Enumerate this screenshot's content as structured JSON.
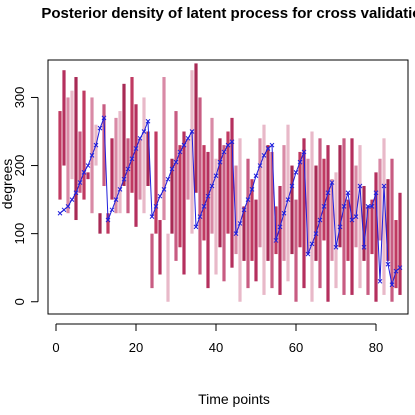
{
  "chart_data": {
    "type": "line",
    "title": "Posterior density of latent process for cross validation",
    "xlabel": "Time points",
    "ylabel": "degrees",
    "xlim": [
      -2,
      88
    ],
    "ylim": [
      -18,
      355
    ],
    "x_ticks": [
      0,
      20,
      40,
      60,
      80
    ],
    "y_ticks": [
      0,
      100,
      200,
      300
    ],
    "grid": false,
    "legend": "none",
    "colors": {
      "line": "#1f1fdc",
      "marker": "#1f1fdc",
      "density_palette": [
        "#c03a62",
        "#b5305e",
        "#d98aa6",
        "#e8b9c9",
        "#a82a55",
        "#c85c82"
      ]
    },
    "series": [
      {
        "type": "line-points",
        "x": [
          1,
          2,
          3,
          4,
          5,
          6,
          7,
          8,
          9,
          10,
          11,
          12,
          13,
          14,
          15,
          16,
          17,
          18,
          19,
          20,
          21,
          22,
          23,
          24,
          25,
          26,
          27,
          28,
          29,
          30,
          31,
          32,
          33,
          34,
          35,
          36,
          37,
          38,
          39,
          40,
          41,
          42,
          43,
          44,
          45,
          46,
          47,
          48,
          49,
          50,
          51,
          52,
          53,
          54,
          55,
          56,
          57,
          58,
          59,
          60,
          61,
          62,
          63,
          64,
          65,
          66,
          67,
          68,
          69,
          70,
          71,
          72,
          73,
          74,
          75,
          76,
          77,
          78,
          79,
          80,
          81,
          82,
          83,
          84,
          85,
          86
        ],
        "y": [
          130,
          135,
          140,
          150,
          160,
          175,
          190,
          200,
          215,
          230,
          255,
          270,
          120,
          135,
          150,
          165,
          180,
          195,
          210,
          225,
          240,
          250,
          265,
          125,
          140,
          155,
          165,
          180,
          195,
          205,
          220,
          230,
          240,
          250,
          110,
          125,
          140,
          155,
          170,
          185,
          205,
          220,
          230,
          235,
          100,
          115,
          135,
          150,
          165,
          185,
          200,
          215,
          225,
          230,
          90,
          110,
          130,
          150,
          170,
          190,
          205,
          220,
          70,
          85,
          100,
          120,
          140,
          160,
          175,
          80,
          110,
          140,
          160,
          120,
          125,
          170,
          80,
          140,
          140,
          160,
          30,
          170,
          55,
          25,
          45,
          50
        ]
      },
      {
        "type": "density-bars",
        "x": [
          1,
          2,
          3,
          4,
          5,
          6,
          7,
          8,
          9,
          10,
          11,
          12,
          13,
          14,
          15,
          16,
          17,
          18,
          19,
          20,
          21,
          22,
          23,
          24,
          25,
          26,
          27,
          28,
          29,
          30,
          31,
          32,
          33,
          34,
          35,
          36,
          37,
          38,
          39,
          40,
          41,
          42,
          43,
          44,
          45,
          46,
          47,
          48,
          49,
          50,
          51,
          52,
          53,
          54,
          55,
          56,
          57,
          58,
          59,
          60,
          61,
          62,
          63,
          64,
          65,
          66,
          67,
          68,
          69,
          70,
          71,
          72,
          73,
          74,
          75,
          76,
          77,
          78,
          79,
          80,
          81,
          82,
          83,
          84,
          85,
          86
        ],
        "low": [
          150,
          200,
          130,
          180,
          120,
          160,
          150,
          180,
          130,
          200,
          100,
          170,
          100,
          150,
          130,
          130,
          170,
          130,
          160,
          110,
          150,
          130,
          170,
          20,
          100,
          40,
          120,
          0,
          100,
          60,
          80,
          40,
          150,
          100,
          160,
          40,
          90,
          20,
          100,
          40,
          80,
          30,
          100,
          50,
          70,
          0,
          60,
          20,
          60,
          30,
          80,
          10,
          60,
          20,
          70,
          10,
          60,
          30,
          70,
          0,
          80,
          20,
          70,
          0,
          60,
          20,
          90,
          0,
          60,
          20,
          80,
          10,
          60,
          10,
          80,
          20,
          60,
          10,
          70,
          0,
          90,
          10,
          60,
          0,
          20,
          10
        ],
        "high": [
          280,
          340,
          300,
          310,
          330,
          250,
          310,
          190,
          300,
          260,
          130,
          290,
          130,
          240,
          270,
          280,
          320,
          240,
          330,
          290,
          240,
          300,
          250,
          100,
          250,
          120,
          330,
          100,
          210,
          280,
          230,
          250,
          240,
          340,
          350,
          300,
          230,
          220,
          270,
          210,
          240,
          230,
          250,
          270,
          200,
          240,
          140,
          210,
          180,
          150,
          240,
          260,
          230,
          220,
          140,
          170,
          230,
          260,
          200,
          150,
          220,
          240,
          210,
          250,
          200,
          240,
          210,
          230,
          180,
          190,
          230,
          240,
          150,
          240,
          200,
          230,
          170,
          140,
          150,
          190,
          210,
          240,
          180,
          210,
          120,
          160
        ]
      }
    ]
  }
}
